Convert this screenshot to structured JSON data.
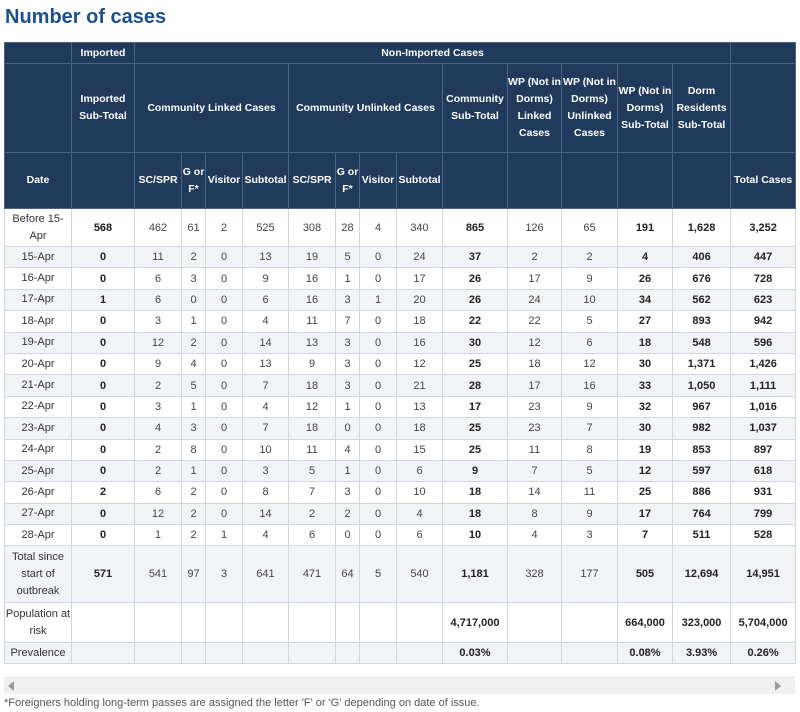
{
  "title": "Number of cases",
  "header": {
    "imported": "Imported",
    "non_imported": "Non-Imported Cases",
    "imported_subtotal": "Imported Sub-Total",
    "community_linked": "Community Linked Cases",
    "community_unlinked": "Community Unlinked Cases",
    "community_subtotal": "Community Sub-Total",
    "wp_linked": "WP (Not in Dorms) Linked Cases",
    "wp_unlinked": "WP (Not in Dorms) Unlinked Cases",
    "wp_subtotal": "WP (Not in Dorms) Sub-Total",
    "dorm_subtotal": "Dorm Residents Sub-Total",
    "date": "Date",
    "sc_spr": "SC/SPR",
    "g_or_f": "G or F*",
    "visitor": "Visitor",
    "subtotal": "Subtotal",
    "total_cases": "Total Cases"
  },
  "rows": [
    [
      "Before 15-Apr",
      "568",
      "462",
      "61",
      "2",
      "525",
      "308",
      "28",
      "4",
      "340",
      "865",
      "126",
      "65",
      "191",
      "1,628",
      "3,252"
    ],
    [
      "15-Apr",
      "0",
      "11",
      "2",
      "0",
      "13",
      "19",
      "5",
      "0",
      "24",
      "37",
      "2",
      "2",
      "4",
      "406",
      "447"
    ],
    [
      "16-Apr",
      "0",
      "6",
      "3",
      "0",
      "9",
      "16",
      "1",
      "0",
      "17",
      "26",
      "17",
      "9",
      "26",
      "676",
      "728"
    ],
    [
      "17-Apr",
      "1",
      "6",
      "0",
      "0",
      "6",
      "16",
      "3",
      "1",
      "20",
      "26",
      "24",
      "10",
      "34",
      "562",
      "623"
    ],
    [
      "18-Apr",
      "0",
      "3",
      "1",
      "0",
      "4",
      "11",
      "7",
      "0",
      "18",
      "22",
      "22",
      "5",
      "27",
      "893",
      "942"
    ],
    [
      "19-Apr",
      "0",
      "12",
      "2",
      "0",
      "14",
      "13",
      "3",
      "0",
      "16",
      "30",
      "12",
      "6",
      "18",
      "548",
      "596"
    ],
    [
      "20-Apr",
      "0",
      "9",
      "4",
      "0",
      "13",
      "9",
      "3",
      "0",
      "12",
      "25",
      "18",
      "12",
      "30",
      "1,371",
      "1,426"
    ],
    [
      "21-Apr",
      "0",
      "2",
      "5",
      "0",
      "7",
      "18",
      "3",
      "0",
      "21",
      "28",
      "17",
      "16",
      "33",
      "1,050",
      "1,111"
    ],
    [
      "22-Apr",
      "0",
      "3",
      "1",
      "0",
      "4",
      "12",
      "1",
      "0",
      "13",
      "17",
      "23",
      "9",
      "32",
      "967",
      "1,016"
    ],
    [
      "23-Apr",
      "0",
      "4",
      "3",
      "0",
      "7",
      "18",
      "0",
      "0",
      "18",
      "25",
      "23",
      "7",
      "30",
      "982",
      "1,037"
    ],
    [
      "24-Apr",
      "0",
      "2",
      "8",
      "0",
      "10",
      "11",
      "4",
      "0",
      "15",
      "25",
      "11",
      "8",
      "19",
      "853",
      "897"
    ],
    [
      "25-Apr",
      "0",
      "2",
      "1",
      "0",
      "3",
      "5",
      "1",
      "0",
      "6",
      "9",
      "7",
      "5",
      "12",
      "597",
      "618"
    ],
    [
      "26-Apr",
      "2",
      "6",
      "2",
      "0",
      "8",
      "7",
      "3",
      "0",
      "10",
      "18",
      "14",
      "11",
      "25",
      "886",
      "931"
    ],
    [
      "27-Apr",
      "0",
      "12",
      "2",
      "0",
      "14",
      "2",
      "2",
      "0",
      "4",
      "18",
      "8",
      "9",
      "17",
      "764",
      "799"
    ],
    [
      "28-Apr",
      "0",
      "1",
      "2",
      "1",
      "4",
      "6",
      "0",
      "0",
      "6",
      "10",
      "4",
      "3",
      "7",
      "511",
      "528"
    ],
    [
      "Total since start of outbreak",
      "571",
      "541",
      "97",
      "3",
      "641",
      "471",
      "64",
      "5",
      "540",
      "1,181",
      "328",
      "177",
      "505",
      "12,694",
      "14,951"
    ],
    [
      "Population at risk",
      "",
      "",
      "",
      "",
      "",
      "",
      "",
      "",
      "",
      "4,717,000",
      "",
      "",
      "664,000",
      "323,000",
      "5,704,000"
    ],
    [
      "Prevalence",
      "",
      "",
      "",
      "",
      "",
      "",
      "",
      "",
      "",
      "0.03%",
      "",
      "",
      "0.08%",
      "3.93%",
      "0.26%"
    ]
  ],
  "footnote": "*Foreigners holding long-term passes are assigned the letter 'F' or 'G' depending on date of issue."
}
